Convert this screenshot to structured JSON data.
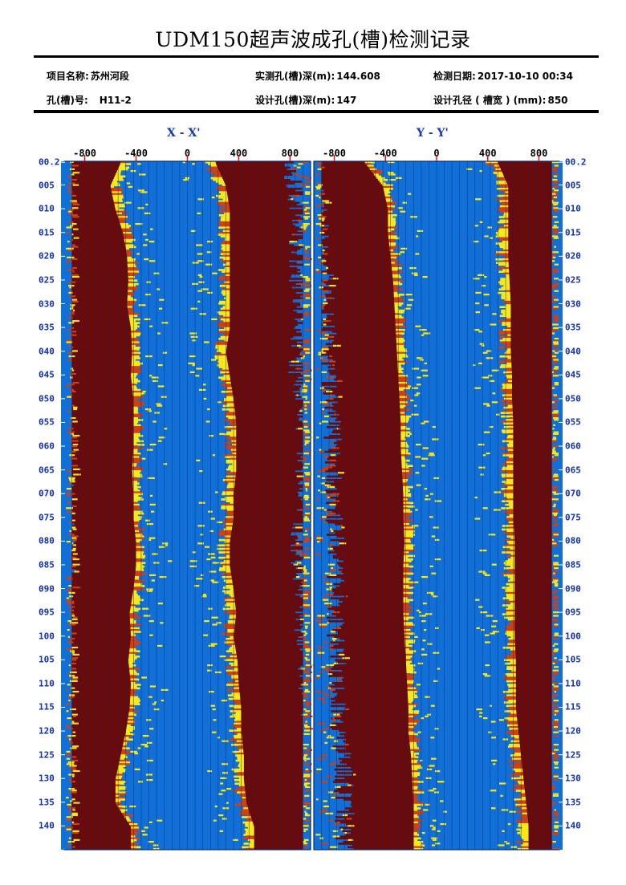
{
  "report": {
    "title": "UDM150超声波成孔(槽)检测记录"
  },
  "header": {
    "project_label": "项目名称:",
    "project_value": "苏州河段",
    "hole_label": "孔(槽)号:",
    "hole_value": "H11-2",
    "measured_depth_label": "实测孔(槽)深(m):",
    "measured_depth_value": "144.608",
    "design_depth_label": "设计孔(槽)深(m):",
    "design_depth_value": "147",
    "date_label": "检测日期:",
    "date_value": "2017-10-10 00:34",
    "design_diameter_label": "设计孔径 ( 槽宽 ) (mm):",
    "design_diameter_value": "850"
  },
  "colors": {
    "background_blue": "#1070d8",
    "dark_echo": "#6a0a0a",
    "bright_echo": "#f8e818",
    "mid_echo": "#d04010",
    "label_blue": "#1030b0",
    "center_red": "#e01010"
  },
  "chart_data": {
    "type": "heatmap",
    "description_type": "ultrasonic borehole wall profile (two sections)",
    "panels": [
      {
        "title": "X - X'",
        "x_ticks": [
          "-800",
          "-400",
          "0",
          "400",
          "800"
        ],
        "x_tick_values": [
          -800,
          -400,
          0,
          400,
          800
        ],
        "xlim": [
          -960,
          960
        ],
        "left_wall_profile_mm": [
          [
            0.2,
            -520
          ],
          [
            5,
            -600
          ],
          [
            10,
            -560
          ],
          [
            15,
            -500
          ],
          [
            20,
            -470
          ],
          [
            25,
            -460
          ],
          [
            30,
            -470
          ],
          [
            35,
            -440
          ],
          [
            40,
            -430
          ],
          [
            45,
            -440
          ],
          [
            50,
            -420
          ],
          [
            55,
            -420
          ],
          [
            60,
            -420
          ],
          [
            65,
            -430
          ],
          [
            70,
            -420
          ],
          [
            75,
            -420
          ],
          [
            80,
            -400
          ],
          [
            85,
            -400
          ],
          [
            90,
            -420
          ],
          [
            95,
            -450
          ],
          [
            100,
            -440
          ],
          [
            105,
            -460
          ],
          [
            110,
            -440
          ],
          [
            115,
            -450
          ],
          [
            120,
            -480
          ],
          [
            125,
            -520
          ],
          [
            130,
            -560
          ],
          [
            135,
            -560
          ],
          [
            140,
            -440
          ]
        ],
        "right_wall_profile_mm": [
          [
            0.2,
            220
          ],
          [
            5,
            300
          ],
          [
            10,
            330
          ],
          [
            15,
            330
          ],
          [
            20,
            330
          ],
          [
            25,
            330
          ],
          [
            30,
            330
          ],
          [
            35,
            330
          ],
          [
            40,
            300
          ],
          [
            45,
            330
          ],
          [
            50,
            360
          ],
          [
            55,
            380
          ],
          [
            60,
            380
          ],
          [
            65,
            380
          ],
          [
            70,
            360
          ],
          [
            75,
            360
          ],
          [
            80,
            330
          ],
          [
            85,
            330
          ],
          [
            90,
            360
          ],
          [
            95,
            380
          ],
          [
            100,
            360
          ],
          [
            105,
            390
          ],
          [
            110,
            400
          ],
          [
            115,
            420
          ],
          [
            120,
            420
          ],
          [
            125,
            440
          ],
          [
            130,
            440
          ],
          [
            135,
            460
          ],
          [
            140,
            520
          ]
        ]
      },
      {
        "title": "Y - Y'",
        "x_ticks": [
          "-800",
          "-400",
          "0",
          "400",
          "800"
        ],
        "x_tick_values": [
          -800,
          -400,
          0,
          400,
          800
        ],
        "xlim": [
          -960,
          960
        ],
        "left_wall_profile_mm": [
          [
            0.2,
            -560
          ],
          [
            5,
            -420
          ],
          [
            10,
            -380
          ],
          [
            15,
            -380
          ],
          [
            20,
            -360
          ],
          [
            25,
            -340
          ],
          [
            30,
            -330
          ],
          [
            35,
            -320
          ],
          [
            40,
            -310
          ],
          [
            45,
            -300
          ],
          [
            50,
            -290
          ],
          [
            55,
            -280
          ],
          [
            60,
            -280
          ],
          [
            65,
            -270
          ],
          [
            70,
            -260
          ],
          [
            75,
            -260
          ],
          [
            80,
            -250
          ],
          [
            85,
            -260
          ],
          [
            90,
            -260
          ],
          [
            95,
            -260
          ],
          [
            100,
            -250
          ],
          [
            105,
            -240
          ],
          [
            110,
            -230
          ],
          [
            115,
            -220
          ],
          [
            120,
            -220
          ],
          [
            125,
            -200
          ],
          [
            130,
            -190
          ],
          [
            135,
            -180
          ],
          [
            140,
            -180
          ]
        ],
        "right_wall_profile_mm": [
          [
            0.2,
            480
          ],
          [
            5,
            560
          ],
          [
            10,
            560
          ],
          [
            15,
            560
          ],
          [
            20,
            560
          ],
          [
            25,
            570
          ],
          [
            30,
            580
          ],
          [
            35,
            580
          ],
          [
            40,
            580
          ],
          [
            45,
            590
          ],
          [
            50,
            590
          ],
          [
            55,
            600
          ],
          [
            60,
            600
          ],
          [
            65,
            600
          ],
          [
            70,
            600
          ],
          [
            75,
            600
          ],
          [
            80,
            610
          ],
          [
            85,
            610
          ],
          [
            90,
            610
          ],
          [
            95,
            610
          ],
          [
            100,
            610
          ],
          [
            105,
            620
          ],
          [
            110,
            620
          ],
          [
            115,
            620
          ],
          [
            120,
            640
          ],
          [
            125,
            660
          ],
          [
            130,
            680
          ],
          [
            135,
            700
          ],
          [
            140,
            720
          ]
        ]
      }
    ],
    "depth_labels": [
      "00.2",
      "005",
      "010",
      "015",
      "020",
      "025",
      "030",
      "035",
      "040",
      "045",
      "050",
      "055",
      "060",
      "065",
      "070",
      "075",
      "080",
      "085",
      "090",
      "095",
      "100",
      "105",
      "110",
      "115",
      "120",
      "125",
      "130",
      "135",
      "140"
    ],
    "depth_values": [
      0.2,
      5,
      10,
      15,
      20,
      25,
      30,
      35,
      40,
      45,
      50,
      55,
      60,
      65,
      70,
      75,
      80,
      85,
      90,
      95,
      100,
      105,
      110,
      115,
      120,
      125,
      130,
      135,
      140
    ],
    "ylim": [
      0,
      145
    ],
    "ylabel": "",
    "grid": true,
    "legend": "none"
  }
}
